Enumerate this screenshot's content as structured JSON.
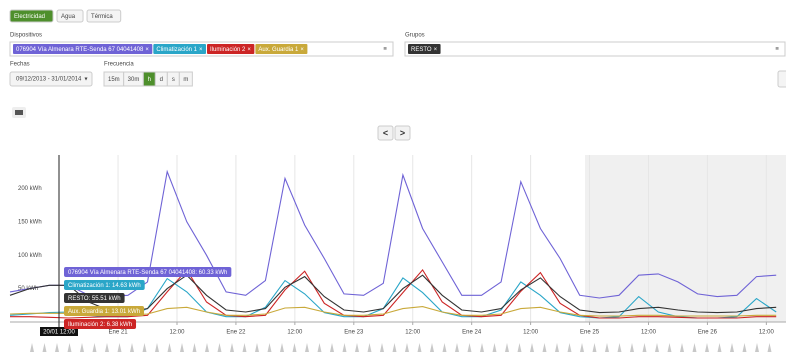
{
  "tabs": [
    "Electricidad",
    "Agua",
    "Térmica"
  ],
  "devices_label": "Dispositivos",
  "groups_label": "Grupos",
  "dates_label": "Fechas",
  "date_range": "09/12/2013 - 31/01/2014",
  "frequency_label": "Frecuencia",
  "frequency_options": [
    "15m",
    "30m",
    "h",
    "d",
    "s",
    "m"
  ],
  "nav": [
    "<",
    ">"
  ],
  "cursor_label": "20/01 12:00",
  "tooltips": [
    {
      "text": "076904 Vía Almenara RTE-Senda 67 04041408: 60.33 kWh",
      "color": "#6f63d6"
    },
    {
      "text": "Climatización 1: 14.63 kWh",
      "color": "#2aa6c8"
    },
    {
      "text": "RESTO: 55.51 kWh",
      "color": "#333333"
    },
    {
      "text": "Aux. Guardia 1: 13.01 kWh",
      "color": "#c9a93a"
    },
    {
      "text": "Iluminación 2: 6.38 kWh",
      "color": "#cc2525"
    }
  ],
  "chart_data": {
    "type": "line",
    "x": [
      -22,
      -18,
      -14,
      -10,
      -6,
      -2,
      2,
      6,
      10,
      14,
      18,
      22,
      26,
      30,
      34,
      38,
      42,
      46,
      50,
      54,
      58,
      62,
      66,
      70,
      74,
      78,
      82,
      86,
      90,
      94,
      98,
      102,
      106,
      110,
      114,
      118,
      122,
      126,
      130,
      134
    ],
    "series": [
      {
        "name": "076904 Vía Almenara RTE-Senda 67 04041408",
        "color": "#6f63d6",
        "group": "devices",
        "values": [
          45,
          50,
          55,
          55,
          40,
          38,
          40,
          60,
          225,
          150,
          100,
          45,
          40,
          62,
          215,
          145,
          95,
          42,
          40,
          58,
          220,
          140,
          90,
          40,
          40,
          60,
          210,
          140,
          95,
          40,
          36,
          40,
          70,
          72,
          60,
          42,
          38,
          40,
          68,
          70
        ]
      },
      {
        "name": "Climatización 1",
        "color": "#2aa6c8",
        "group": "devices",
        "values": [
          10,
          12,
          14,
          15,
          10,
          8,
          8,
          20,
          65,
          45,
          15,
          8,
          8,
          22,
          62,
          42,
          14,
          8,
          8,
          20,
          66,
          44,
          15,
          8,
          8,
          18,
          60,
          40,
          14,
          8,
          6,
          8,
          38,
          15,
          8,
          6,
          6,
          8,
          35,
          15
        ]
      },
      {
        "name": "Iluminación 2",
        "color": "#cc2525",
        "group": "devices",
        "values": [
          8,
          8,
          7,
          6,
          7,
          8,
          8,
          10,
          45,
          78,
          30,
          10,
          8,
          10,
          48,
          76,
          28,
          10,
          8,
          10,
          44,
          78,
          30,
          10,
          8,
          10,
          46,
          74,
          28,
          10,
          6,
          6,
          8,
          8,
          7,
          6,
          6,
          6,
          8,
          8
        ]
      },
      {
        "name": "Aux. Guardia 1",
        "color": "#c9a93a",
        "group": "devices",
        "values": [
          12,
          13,
          13,
          13,
          12,
          10,
          10,
          12,
          20,
          22,
          15,
          10,
          10,
          12,
          21,
          22,
          15,
          10,
          10,
          12,
          20,
          23,
          15,
          10,
          10,
          12,
          20,
          22,
          15,
          10,
          9,
          9,
          10,
          10,
          9,
          9,
          9,
          9,
          10,
          10
        ]
      },
      {
        "name": "RESTO",
        "color": "#333333",
        "group": "groups",
        "values": [
          40,
          50,
          55,
          55,
          30,
          18,
          15,
          20,
          50,
          70,
          40,
          18,
          15,
          20,
          52,
          68,
          38,
          18,
          15,
          20,
          50,
          70,
          40,
          18,
          15,
          20,
          48,
          66,
          38,
          18,
          14,
          15,
          20,
          22,
          18,
          15,
          14,
          15,
          20,
          22
        ]
      }
    ],
    "xlim": [
      -22,
      136
    ],
    "xticks": [
      {
        "value": 0,
        "label": "Ene 21"
      },
      {
        "value": 12,
        "label": "12:00"
      },
      {
        "value": 24,
        "label": "Ene 22"
      },
      {
        "value": 36,
        "label": "12:00"
      },
      {
        "value": 48,
        "label": "Ene 23"
      },
      {
        "value": 60,
        "label": "12:00"
      },
      {
        "value": 72,
        "label": "Ene 24"
      },
      {
        "value": 84,
        "label": "12:00"
      },
      {
        "value": 96,
        "label": "Ene 25"
      },
      {
        "value": 108,
        "label": "12:00"
      },
      {
        "value": 120,
        "label": "Ene 26"
      },
      {
        "value": 132,
        "label": "12:00"
      }
    ],
    "ylim": [
      0,
      250
    ],
    "yticks": [
      {
        "value": 50,
        "label": "50 kWh"
      },
      {
        "value": 100,
        "label": "100 kWh"
      },
      {
        "value": 150,
        "label": "150 kWh"
      },
      {
        "value": 200,
        "label": "200 kWh"
      }
    ],
    "grid": true
  }
}
